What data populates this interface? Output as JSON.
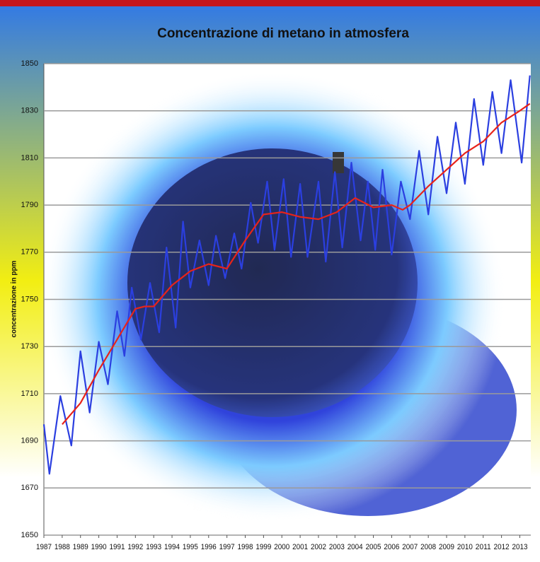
{
  "chart_data": {
    "type": "line",
    "title": "Concentrazione di metano in atmosfera",
    "y_label": "concentrazione in ppm",
    "xlim": [
      1987,
      2013.6
    ],
    "xticks": [
      1987,
      1988,
      1989,
      1990,
      1991,
      1992,
      1993,
      1994,
      1995,
      1996,
      1997,
      1998,
      1999,
      2000,
      2001,
      2002,
      2003,
      2004,
      2005,
      2006,
      2007,
      2008,
      2009,
      2010,
      2011,
      2012,
      2013
    ],
    "ylim": [
      1650,
      1850
    ],
    "yticks": [
      1650,
      1670,
      1690,
      1710,
      1730,
      1750,
      1770,
      1790,
      1810,
      1830,
      1850
    ],
    "grid": true,
    "series": [
      {
        "color": "#2b3fe0",
        "x": [
          1987.0,
          1987.3,
          1987.9,
          1988.5,
          1989.0,
          1989.5,
          1990.0,
          1990.5,
          1991.0,
          1991.4,
          1991.8,
          1992.3,
          1992.8,
          1993.3,
          1993.7,
          1994.2,
          1994.6,
          1995.0,
          1995.5,
          1996.0,
          1996.4,
          1996.9,
          1997.4,
          1997.8,
          1998.3,
          1998.7,
          1999.2,
          1999.6,
          2000.1,
          2000.5,
          2001.0,
          2001.4,
          2002.0,
          2002.4,
          2002.9,
          2003.3,
          2003.8,
          2004.3,
          2004.7,
          2005.1,
          2005.5,
          2006.0,
          2006.5,
          2007.0,
          2007.5,
          2008.0,
          2008.5,
          2009.0,
          2009.5,
          2010.0,
          2010.5,
          2011.0,
          2011.5,
          2012.0,
          2012.5,
          2013.1,
          2013.55
        ],
        "values": [
          1697,
          1676,
          1709,
          1688,
          1728,
          1702,
          1732,
          1714,
          1745,
          1726,
          1755,
          1733,
          1757,
          1736,
          1772,
          1738,
          1783,
          1755,
          1775,
          1756,
          1777,
          1759,
          1778,
          1763,
          1791,
          1774,
          1800,
          1771,
          1801,
          1768,
          1799,
          1768,
          1800,
          1766,
          1804,
          1772,
          1808,
          1775,
          1800,
          1771,
          1805,
          1769,
          1800,
          1784,
          1813,
          1786,
          1819,
          1795,
          1825,
          1799,
          1835,
          1807,
          1838,
          1812,
          1843,
          1808,
          1845
        ]
      },
      {
        "color": "#e8231a",
        "x": [
          1988.0,
          1989.0,
          1990.0,
          1991.0,
          1992.0,
          1992.5,
          1993.0,
          1994.0,
          1995.0,
          1996.0,
          1997.0,
          1998.0,
          1999.0,
          2000.0,
          2001.0,
          2002.0,
          2003.0,
          2004.0,
          2005.0,
          2006.0,
          2006.6,
          2007.0,
          2008.0,
          2009.0,
          2010.0,
          2011.0,
          2012.0,
          2013.0,
          2013.55
        ],
        "values": [
          1697,
          1706,
          1720,
          1733,
          1746,
          1747,
          1747,
          1756,
          1762,
          1765,
          1763,
          1775,
          1786,
          1787,
          1785,
          1784,
          1787,
          1793,
          1789,
          1790,
          1788,
          1790,
          1798,
          1805,
          1812,
          1817,
          1825,
          1830,
          1833
        ]
      }
    ]
  }
}
